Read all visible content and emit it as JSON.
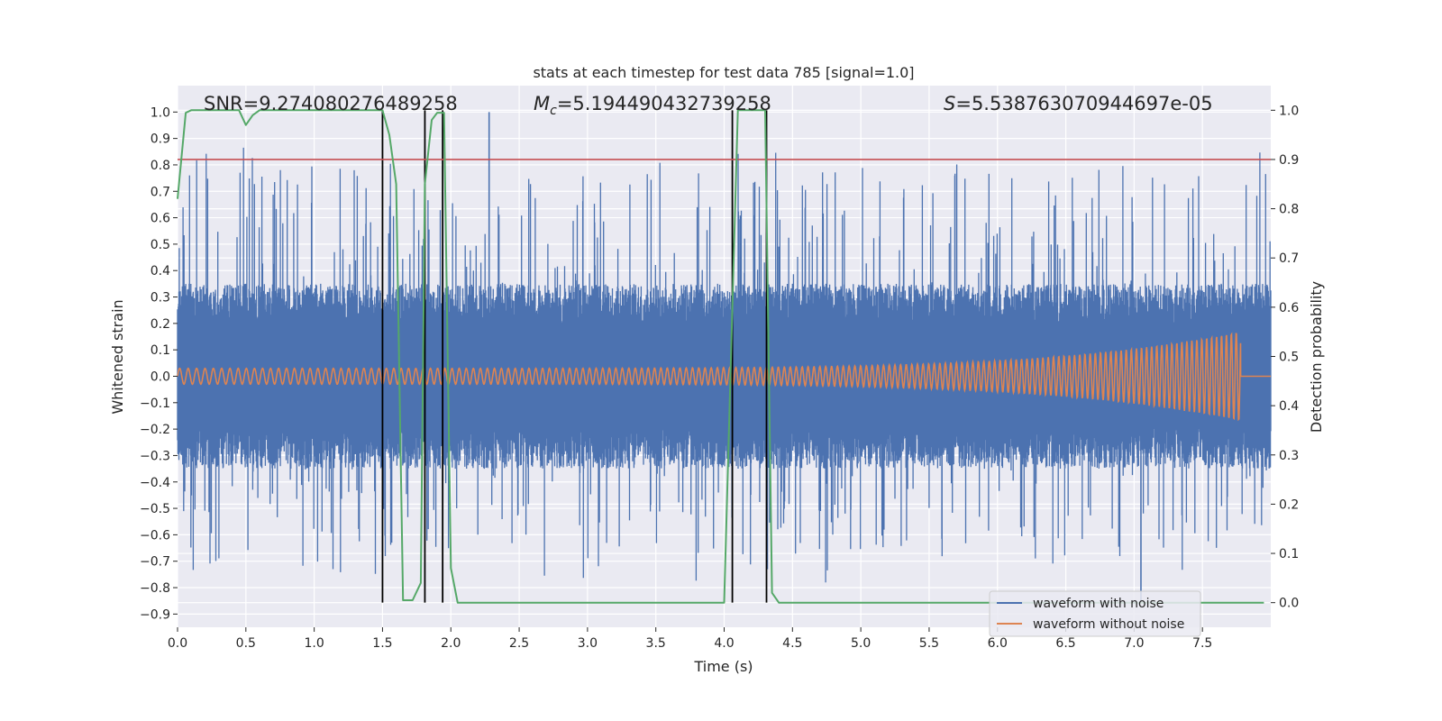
{
  "chart_data": {
    "type": "line",
    "title": "stats at each timestep for test data 785 [signal=1.0]",
    "xlabel": "Time (s)",
    "ylabel": "Whitened strain",
    "ylabel_right": "Detection probability",
    "xlim": [
      0.0,
      8.0
    ],
    "ylim": [
      -0.95,
      1.1
    ],
    "ylim_right": [
      -0.05,
      1.05
    ],
    "xticks": [
      "0.0",
      "0.5",
      "1.0",
      "1.5",
      "2.0",
      "2.5",
      "3.0",
      "3.5",
      "4.0",
      "4.5",
      "5.0",
      "5.5",
      "6.0",
      "6.5",
      "7.0",
      "7.5"
    ],
    "xtick_values": [
      0.0,
      0.5,
      1.0,
      1.5,
      2.0,
      2.5,
      3.0,
      3.5,
      4.0,
      4.5,
      5.0,
      5.5,
      6.0,
      6.5,
      7.0,
      7.5
    ],
    "yticks": [
      "−0.9",
      "−0.8",
      "−0.7",
      "−0.6",
      "−0.5",
      "−0.4",
      "−0.3",
      "−0.2",
      "−0.1",
      "0.0",
      "0.1",
      "0.2",
      "0.3",
      "0.4",
      "0.5",
      "0.6",
      "0.7",
      "0.8",
      "0.9",
      "1.0"
    ],
    "ytick_values": [
      -0.9,
      -0.8,
      -0.7,
      -0.6,
      -0.5,
      -0.4,
      -0.3,
      -0.2,
      -0.1,
      0.0,
      0.1,
      0.2,
      0.3,
      0.4,
      0.5,
      0.6,
      0.7,
      0.8,
      0.9,
      1.0
    ],
    "yticks_right": [
      "0.0",
      "0.1",
      "0.2",
      "0.3",
      "0.4",
      "0.5",
      "0.6",
      "0.7",
      "0.8",
      "0.9",
      "1.0"
    ],
    "ytick_values_right": [
      0.0,
      0.1,
      0.2,
      0.3,
      0.4,
      0.5,
      0.6,
      0.7,
      0.8,
      0.9,
      1.0
    ],
    "annotations": {
      "snr": "SNR=9.274080276489258",
      "mc_symbol": "M",
      "mc_sub": "c",
      "mc_value": "=5.194490432739258",
      "s_symbol": "S",
      "s_value": "=5.538763070944697e-05"
    },
    "legend": {
      "position": "lower right",
      "entries": [
        {
          "label": "waveform with noise",
          "color": "#4c72b0"
        },
        {
          "label": "waveform without noise",
          "color": "#dd8452"
        }
      ]
    },
    "noisy_waveform": {
      "color": "#4c72b0",
      "description_values": {
        "typical_amplitude": 0.35,
        "max_peak": 1.0,
        "min_peak": -0.87
      }
    },
    "clean_waveform": {
      "color": "#dd8452",
      "t_end": 7.78,
      "start_amplitude": 0.03,
      "end_amplitude": 0.17
    },
    "threshold": {
      "value": 0.9,
      "axis": "right",
      "color": "#c44e52"
    },
    "detection_probability": {
      "color": "#55a868",
      "x": [
        0.0,
        0.06,
        0.1,
        0.2,
        0.3,
        0.4,
        0.45,
        0.5,
        0.55,
        0.6,
        0.7,
        0.8,
        1.0,
        1.2,
        1.4,
        1.5,
        1.55,
        1.6,
        1.65,
        1.72,
        1.78,
        1.81,
        1.86,
        1.9,
        1.95,
        2.0,
        2.05,
        2.1,
        2.5,
        3.0,
        3.5,
        4.0,
        4.05,
        4.1,
        4.15,
        4.2,
        4.3,
        4.35,
        4.4,
        4.45,
        5.0,
        6.0,
        7.0,
        7.95
      ],
      "y": [
        0.82,
        0.995,
        1.0,
        1.0,
        1.0,
        1.0,
        1.0,
        0.97,
        0.99,
        1.0,
        1.0,
        1.0,
        1.0,
        1.0,
        1.0,
        1.0,
        0.95,
        0.85,
        0.005,
        0.005,
        0.04,
        0.85,
        0.98,
        0.995,
        0.995,
        0.07,
        0.0,
        0.0,
        0.0,
        0.0,
        0.0,
        0.0,
        0.5,
        1.0,
        1.0,
        1.0,
        1.0,
        0.02,
        0.0,
        0.0,
        0.0,
        0.0,
        0.0,
        0.0
      ]
    },
    "vertical_markers": {
      "color": "#000000",
      "x": [
        1.5,
        1.81,
        1.94,
        4.06,
        4.31
      ]
    }
  }
}
